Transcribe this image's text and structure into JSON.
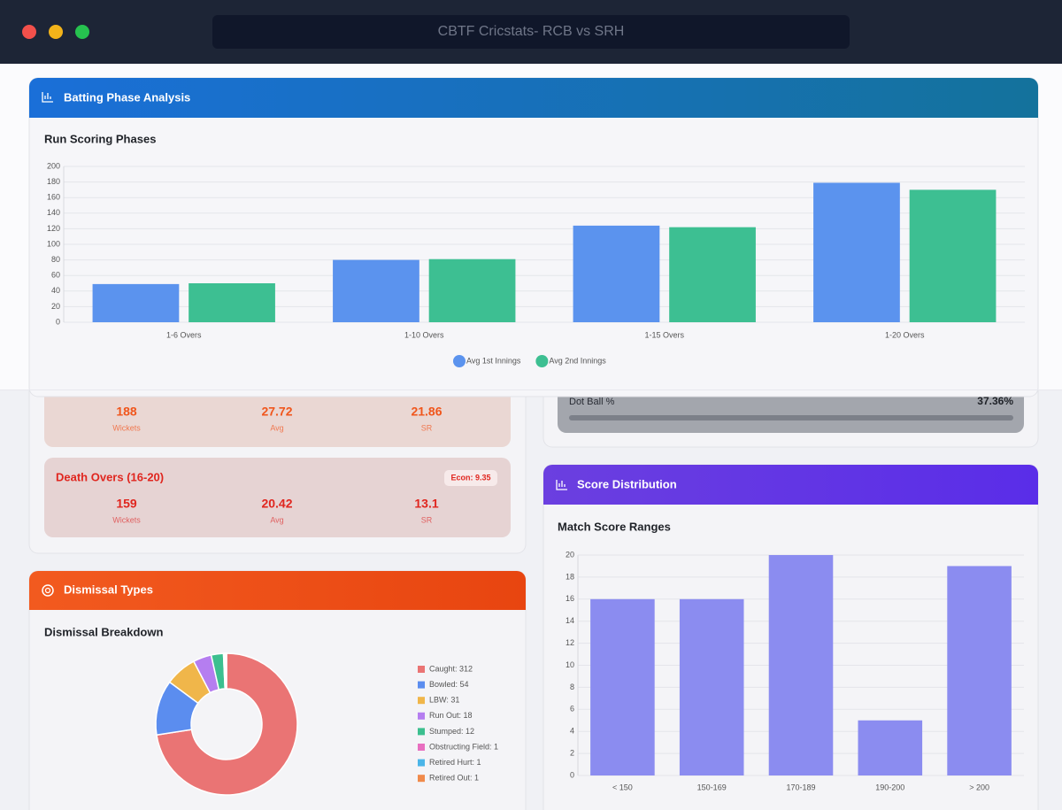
{
  "window": {
    "title": "CBTF Cricstats- RCB vs SRH"
  },
  "batting_phase": {
    "header": "Batting Phase Analysis",
    "chart_data": {
      "type": "bar",
      "title": "Run Scoring Phases",
      "categories": [
        "1-6 Overs",
        "1-10 Overs",
        "1-15 Overs",
        "1-20 Overs"
      ],
      "series": [
        {
          "name": "Avg 1st Innings",
          "color": "#5b93ee",
          "values": [
            49,
            80,
            124,
            179
          ]
        },
        {
          "name": "Avg 2nd Innings",
          "color": "#3dbf92",
          "values": [
            50,
            81,
            122,
            170
          ]
        }
      ],
      "ylim": [
        0,
        200
      ],
      "yticks": [
        0,
        20,
        40,
        60,
        80,
        100,
        120,
        140,
        160,
        180,
        200
      ],
      "grid": true,
      "legend": "bottom"
    }
  },
  "phase_cards": [
    {
      "stats": [
        {
          "value": 188,
          "label": "Wickets"
        },
        {
          "value": 27.72,
          "label": "Avg"
        },
        {
          "value": 21.86,
          "label": "SR"
        }
      ]
    },
    {
      "title": "Death Overs (16-20)",
      "badge": "Econ: 9.35",
      "stats": [
        {
          "value": 159,
          "label": "Wickets"
        },
        {
          "value": 20.42,
          "label": "Avg"
        },
        {
          "value": 13.1,
          "label": "SR"
        }
      ]
    }
  ],
  "dot_ball": {
    "label": "Dot Ball %",
    "value": "37.36%"
  },
  "dismissals": {
    "header": "Dismissal Types",
    "chart_data": {
      "type": "pie",
      "title": "Dismissal Breakdown",
      "categories": [
        "Caught: 312",
        "Bowled: 54",
        "LBW: 31",
        "Run Out: 18",
        "Stumped: 12",
        "Obstructing Field: 1",
        "Retired Hurt: 1",
        "Retired Out: 1"
      ],
      "values": [
        312,
        54,
        31,
        18,
        12,
        1,
        1,
        1
      ],
      "colors": [
        "#ea7474",
        "#5b8def",
        "#f0b64a",
        "#b57ef0",
        "#3cbf8f",
        "#e86fc0",
        "#4bb5e8",
        "#f08a4b"
      ],
      "legend": "right"
    }
  },
  "score_distribution": {
    "header": "Score Distribution",
    "chart_data": {
      "type": "bar",
      "title": "Match Score Ranges",
      "categories": [
        "< 150",
        "150-169",
        "170-189",
        "190-200",
        "> 200"
      ],
      "series": [
        {
          "color": "#8b8cf0",
          "values": [
            16,
            16,
            20,
            5,
            19
          ]
        }
      ],
      "ylim": [
        0,
        20
      ],
      "yticks": [
        0,
        2,
        4,
        6,
        8,
        10,
        12,
        14,
        16,
        18,
        20
      ],
      "grid": true
    }
  }
}
